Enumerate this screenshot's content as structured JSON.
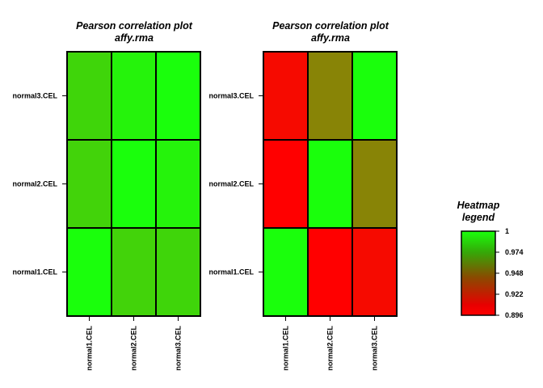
{
  "chart_data": [
    {
      "type": "heatmap",
      "title": "Pearson correlation plot",
      "subtitle": "affy.rma",
      "x_categories": [
        "normal1.CEL",
        "normal2.CEL",
        "normal3.CEL"
      ],
      "y_categories": [
        "normal1.CEL",
        "normal2.CEL",
        "normal3.CEL"
      ],
      "values": [
        [
          1.0,
          0.982,
          0.983
        ],
        [
          0.982,
          1.0,
          0.995
        ],
        [
          0.983,
          0.995,
          1.0
        ]
      ]
    },
    {
      "type": "heatmap",
      "title": "Pearson correlation plot",
      "subtitle": "affy.rma",
      "x_categories": [
        "normal1.CEL",
        "normal2.CEL",
        "normal3.CEL"
      ],
      "y_categories": [
        "normal1.CEL",
        "normal2.CEL",
        "normal3.CEL"
      ],
      "values": [
        [
          1.0,
          0.896,
          0.9
        ],
        [
          0.896,
          1.0,
          0.95
        ],
        [
          0.9,
          0.95,
          1.0
        ]
      ]
    }
  ],
  "legend": {
    "title_line1": "Heatmap",
    "title_line2": "legend",
    "min": 0.896,
    "max": 1,
    "ticks": [
      {
        "value": 1,
        "label": "1"
      },
      {
        "value": 0.974,
        "label": "0.974"
      },
      {
        "value": 0.948,
        "label": "0.948"
      },
      {
        "value": 0.922,
        "label": "0.922"
      },
      {
        "value": 0.896,
        "label": "0.896"
      }
    ],
    "color_low": "#ff0000",
    "color_high": "#1aff0c"
  }
}
